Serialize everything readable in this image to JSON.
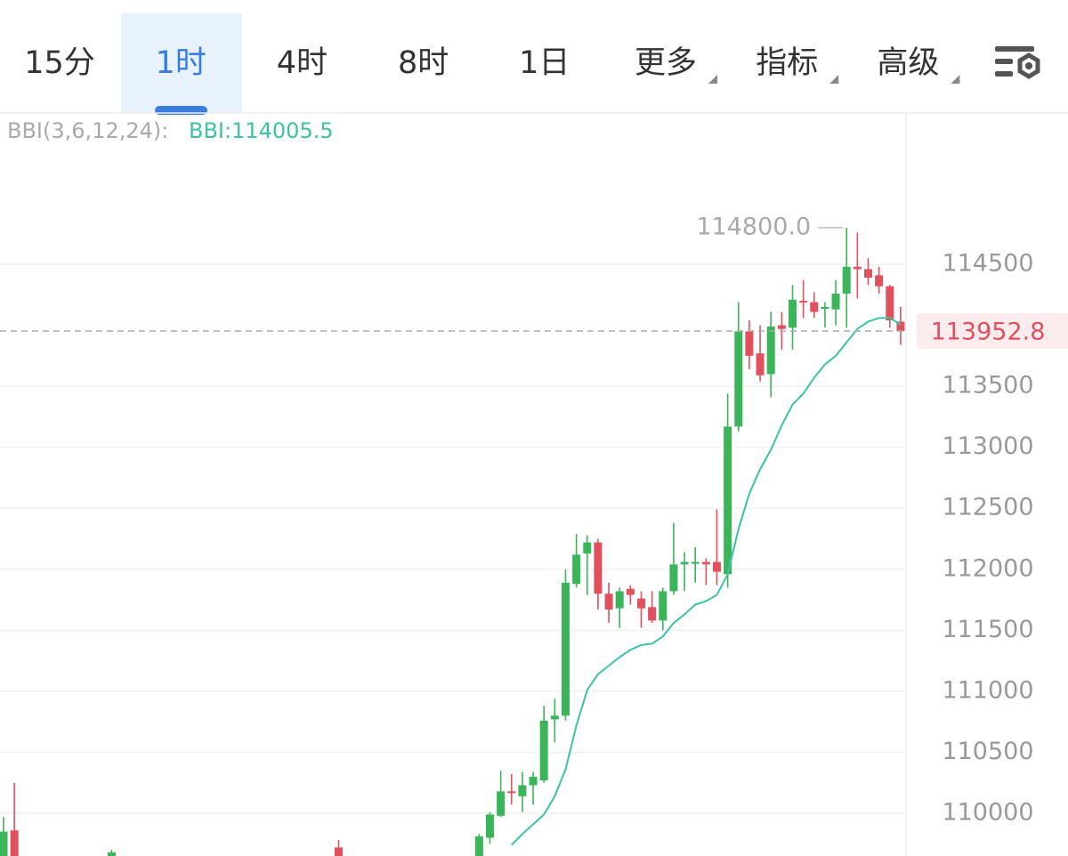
{
  "tabs": [
    "15分",
    "1时",
    "4时",
    "8时",
    "1日",
    "更多",
    "指标",
    "高级"
  ],
  "selected_tab": 1,
  "dropdown_tabs": [
    5,
    6,
    7
  ],
  "chart_data": {
    "type": "candlestick",
    "bbi_title": "BBI(3,6,12,24):",
    "bbi_label": "BBI:114005.5",
    "bbi_color": "#3cc2a4",
    "up_color": "#3cb55a",
    "down_color": "#e0505d",
    "x": [
      0,
      1,
      10,
      31,
      44,
      45,
      46,
      47,
      48,
      49,
      50,
      51,
      52,
      53,
      54,
      55,
      56,
      57,
      58,
      59,
      60,
      61,
      62,
      63,
      64,
      65,
      66,
      67,
      68,
      69,
      70,
      71,
      72,
      73,
      74,
      75,
      76,
      77,
      78,
      79,
      80,
      81,
      82,
      83
    ],
    "open": [
      109600,
      109860,
      109600,
      109720,
      109650,
      109800,
      109980,
      110180,
      110140,
      110230,
      110270,
      110770,
      110800,
      111880,
      112130,
      112220,
      111800,
      111680,
      111840,
      111760,
      111690,
      111580,
      111820,
      112040,
      112050,
      112060,
      112060,
      111960,
      113170,
      113950,
      113770,
      113600,
      114000,
      113980,
      114200,
      114190,
      114140,
      114130,
      114260,
      114480,
      114460,
      114410,
      114320,
      114030
    ],
    "high": [
      109970,
      110250,
      109700,
      109780,
      109830,
      110010,
      110350,
      110320,
      110340,
      110340,
      110880,
      110940,
      112000,
      112290,
      112280,
      112250,
      111890,
      111850,
      111870,
      111820,
      111820,
      111850,
      112380,
      112140,
      112180,
      112090,
      112490,
      113440,
      114190,
      114040,
      114000,
      114110,
      114110,
      114330,
      114370,
      114270,
      114190,
      114370,
      114800,
      114760,
      114550,
      114480,
      114330,
      114150
    ],
    "low": [
      109500,
      109550,
      109500,
      109500,
      109550,
      109750,
      109970,
      110070,
      110010,
      110070,
      110250,
      110580,
      110760,
      111850,
      111790,
      111670,
      111560,
      111520,
      111710,
      111520,
      111560,
      111500,
      111790,
      111820,
      111890,
      111870,
      111870,
      111850,
      113130,
      113640,
      113540,
      113410,
      113800,
      113800,
      114060,
      114060,
      113980,
      114000,
      113980,
      114220,
      114330,
      114260,
      113980,
      113840
    ],
    "close": [
      109850,
      109600,
      109680,
      109600,
      109810,
      109990,
      110180,
      110170,
      110230,
      110300,
      110760,
      110800,
      111890,
      112120,
      112220,
      111800,
      111670,
      111820,
      111790,
      111680,
      111580,
      111820,
      112040,
      112060,
      112060,
      112040,
      111980,
      113170,
      113950,
      113750,
      113590,
      113990,
      113970,
      114210,
      114190,
      114110,
      114150,
      114260,
      114480,
      114460,
      114390,
      114320,
      114040,
      113952.8
    ],
    "bbi": [
      null,
      null,
      null,
      null,
      null,
      null,
      null,
      109740,
      109830,
      109910,
      109990,
      110140,
      110360,
      110720,
      111010,
      111140,
      111210,
      111280,
      111340,
      111380,
      111390,
      111450,
      111560,
      111630,
      111710,
      111740,
      111790,
      111960,
      112330,
      112620,
      112820,
      112980,
      113180,
      113350,
      113440,
      113570,
      113680,
      113750,
      113860,
      113970,
      114030,
      114060,
      114060,
      114005.5
    ],
    "high_label": {
      "value": 114800,
      "label": "114800.0"
    },
    "last_price": 113952.8,
    "xlim": [
      -0.33,
      83.5
    ],
    "ylim": [
      109650,
      115740
    ],
    "yticks": [
      110000,
      110500,
      111000,
      111500,
      112000,
      112500,
      113000,
      113500,
      114500
    ],
    "grid": true
  }
}
